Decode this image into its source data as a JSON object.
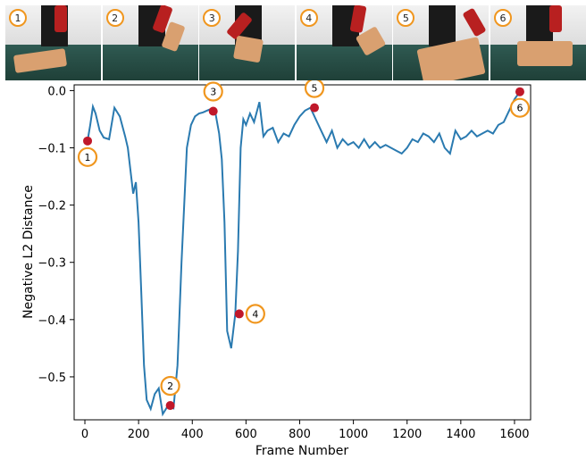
{
  "frames": [
    {
      "label": "1"
    },
    {
      "label": "2"
    },
    {
      "label": "3"
    },
    {
      "label": "4"
    },
    {
      "label": "5"
    },
    {
      "label": "6"
    }
  ],
  "chart_data": {
    "type": "line",
    "xlabel": "Frame Number",
    "ylabel": "Negative L2 Distance",
    "xlim": [
      -40,
      1660
    ],
    "ylim": [
      -0.575,
      0.01
    ],
    "xticks": [
      0,
      200,
      400,
      600,
      800,
      1000,
      1200,
      1400,
      1600
    ],
    "yticks": [
      0.0,
      -0.1,
      -0.2,
      -0.3,
      -0.4,
      -0.5
    ],
    "ytick_labels": [
      "0.0",
      "−0.1",
      "−0.2",
      "−0.3",
      "−0.4",
      "−0.5"
    ],
    "grid": false,
    "line_color": "#2a7ab0",
    "marker_color": "#c0182a",
    "badge_color": "#f0961e",
    "series": [
      {
        "x": [
          0,
          10,
          20,
          30,
          40,
          55,
          70,
          90,
          110,
          130,
          150,
          160,
          170,
          180,
          190,
          200,
          210,
          220,
          230,
          245,
          260,
          275,
          290,
          310,
          330,
          345,
          360,
          380,
          395,
          410,
          425,
          440,
          455,
          470,
          485,
          500,
          510,
          520,
          530,
          545,
          560,
          570,
          580,
          590,
          600,
          615,
          630,
          650,
          665,
          680,
          700,
          720,
          740,
          760,
          780,
          800,
          820,
          840,
          860,
          880,
          900,
          920,
          940,
          960,
          980,
          1000,
          1020,
          1040,
          1060,
          1080,
          1100,
          1120,
          1140,
          1160,
          1180,
          1200,
          1220,
          1240,
          1260,
          1280,
          1300,
          1320,
          1340,
          1360,
          1380,
          1400,
          1420,
          1440,
          1460,
          1480,
          1500,
          1520,
          1540,
          1560,
          1580,
          1600,
          1620
        ],
        "y": [
          -0.085,
          -0.088,
          -0.06,
          -0.028,
          -0.04,
          -0.07,
          -0.082,
          -0.085,
          -0.03,
          -0.045,
          -0.08,
          -0.1,
          -0.14,
          -0.18,
          -0.16,
          -0.23,
          -0.35,
          -0.48,
          -0.54,
          -0.556,
          -0.53,
          -0.52,
          -0.565,
          -0.55,
          -0.555,
          -0.48,
          -0.3,
          -0.1,
          -0.06,
          -0.045,
          -0.04,
          -0.038,
          -0.035,
          -0.032,
          -0.036,
          -0.075,
          -0.12,
          -0.23,
          -0.42,
          -0.45,
          -0.39,
          -0.28,
          -0.1,
          -0.05,
          -0.06,
          -0.04,
          -0.055,
          -0.02,
          -0.08,
          -0.07,
          -0.065,
          -0.09,
          -0.075,
          -0.08,
          -0.06,
          -0.045,
          -0.035,
          -0.03,
          -0.05,
          -0.07,
          -0.09,
          -0.07,
          -0.1,
          -0.085,
          -0.095,
          -0.09,
          -0.1,
          -0.085,
          -0.1,
          -0.09,
          -0.1,
          -0.095,
          -0.1,
          -0.105,
          -0.11,
          -0.1,
          -0.085,
          -0.09,
          -0.075,
          -0.08,
          -0.09,
          -0.075,
          -0.1,
          -0.11,
          -0.07,
          -0.085,
          -0.08,
          -0.07,
          -0.08,
          -0.075,
          -0.07,
          -0.075,
          -0.06,
          -0.055,
          -0.035,
          -0.015,
          -0.002
        ]
      }
    ],
    "markers": [
      {
        "label": "1",
        "x": 10,
        "y": -0.088,
        "badge_side": "below"
      },
      {
        "label": "2",
        "x": 318,
        "y": -0.55,
        "badge_side": "above"
      },
      {
        "label": "3",
        "x": 478,
        "y": -0.036,
        "badge_side": "above"
      },
      {
        "label": "4",
        "x": 575,
        "y": -0.39,
        "badge_side": "right"
      },
      {
        "label": "5",
        "x": 855,
        "y": -0.03,
        "badge_side": "above"
      },
      {
        "label": "6",
        "x": 1620,
        "y": -0.002,
        "badge_side": "below"
      }
    ]
  }
}
